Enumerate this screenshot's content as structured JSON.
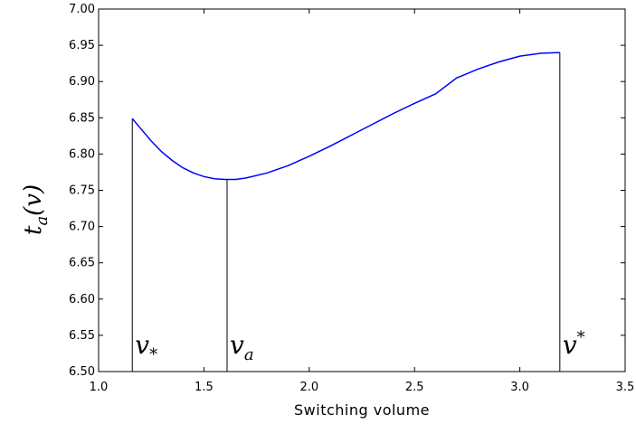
{
  "chart_data": {
    "type": "line",
    "xlabel": "Switching volume",
    "ylabel": {
      "base": "t",
      "sub": "a",
      "arg": "(v)"
    },
    "xlim": [
      1.0,
      3.5
    ],
    "ylim": [
      6.5,
      7.0
    ],
    "xticks": [
      1.0,
      1.5,
      2.0,
      2.5,
      3.0,
      3.5
    ],
    "xtick_labels": [
      "1.0",
      "1.5",
      "2.0",
      "2.5",
      "3.0",
      "3.5"
    ],
    "yticks": [
      6.5,
      6.55,
      6.6,
      6.65,
      6.7,
      6.75,
      6.8,
      6.85,
      6.9,
      6.95,
      7.0
    ],
    "ytick_labels": [
      "6.50",
      "6.55",
      "6.60",
      "6.65",
      "6.70",
      "6.75",
      "6.80",
      "6.85",
      "6.90",
      "6.95",
      "7.00"
    ],
    "grid": false,
    "line_color": "#0000ff",
    "series": [
      {
        "x": [
          1.16,
          1.2,
          1.25,
          1.3,
          1.35,
          1.4,
          1.45,
          1.5,
          1.55,
          1.6,
          1.61,
          1.65,
          1.7,
          1.8,
          1.9,
          2.0,
          2.1,
          2.2,
          2.3,
          2.4,
          2.5,
          2.6,
          2.7,
          2.8,
          2.9,
          3.0,
          3.1,
          3.19
        ],
        "y": [
          6.849,
          6.835,
          6.818,
          6.803,
          6.791,
          6.781,
          6.774,
          6.769,
          6.766,
          6.765,
          6.765,
          6.765,
          6.767,
          6.774,
          6.784,
          6.797,
          6.811,
          6.826,
          6.841,
          6.856,
          6.87,
          6.883,
          6.905,
          6.917,
          6.927,
          6.935,
          6.939,
          6.94
        ]
      }
    ],
    "markers": [
      {
        "x": 1.16,
        "base": "v",
        "sub": "*",
        "sup": ""
      },
      {
        "x": 1.61,
        "base": "v",
        "sub": "a",
        "sup": ""
      },
      {
        "x": 3.19,
        "base": "v",
        "sub": "",
        "sup": "*"
      }
    ]
  }
}
